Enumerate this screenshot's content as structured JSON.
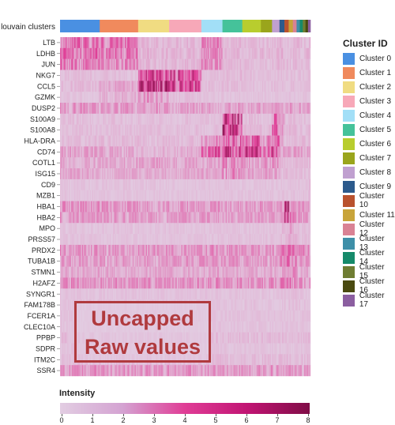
{
  "top_bar_label": "louvain clusters",
  "legend_title": "Cluster ID",
  "colorbar_title": "Intensity",
  "colorbar_ticks": [
    "0",
    "1",
    "2",
    "3",
    "4",
    "5",
    "6",
    "7",
    "8"
  ],
  "stamp_line1": "Uncapped",
  "stamp_line2": "Raw values",
  "colors": {
    "low": "#e2cde2",
    "mid": "#e03d96",
    "high": "#7f0c46",
    "stamp": "#b03a3e"
  },
  "clusters": [
    {
      "label": "Cluster 0",
      "color": "#4a90e2",
      "share": 0.16
    },
    {
      "label": "Cluster 1",
      "color": "#f08a5d",
      "share": 0.155
    },
    {
      "label": "Cluster 2",
      "color": "#f0dc82",
      "share": 0.125
    },
    {
      "label": "Cluster 3",
      "color": "#f7a8b8",
      "share": 0.13
    },
    {
      "label": "Cluster 4",
      "color": "#a2dff7",
      "share": 0.085
    },
    {
      "label": "Cluster 5",
      "color": "#45c29a",
      "share": 0.08
    },
    {
      "label": "Cluster 6",
      "color": "#b8cd2e",
      "share": 0.075
    },
    {
      "label": "Cluster 7",
      "color": "#9aa51c",
      "share": 0.045
    },
    {
      "label": "Cluster 8",
      "color": "#c0a0d0",
      "share": 0.03
    },
    {
      "label": "Cluster 9",
      "color": "#2c5a8c",
      "share": 0.02
    },
    {
      "label": "Cluster 10",
      "color": "#b9522e",
      "share": 0.017
    },
    {
      "label": "Cluster 11",
      "color": "#c8a43a",
      "share": 0.017
    },
    {
      "label": "Cluster 12",
      "color": "#d98294",
      "share": 0.015
    },
    {
      "label": "Cluster 13",
      "color": "#3e8fa8",
      "share": 0.013
    },
    {
      "label": "Cluster 14",
      "color": "#168a6a",
      "share": 0.012
    },
    {
      "label": "Cluster 15",
      "color": "#6f7d33",
      "share": 0.011
    },
    {
      "label": "Cluster 16",
      "color": "#4a4a10",
      "share": 0.01
    },
    {
      "label": "Cluster 17",
      "color": "#8b5ea0",
      "share": 0.01
    }
  ],
  "chart_data": {
    "type": "heatmap",
    "title": "",
    "xlabel": "louvain clusters",
    "ylabel": "",
    "colorbar_label": "Intensity",
    "colorbar_range": [
      0,
      8
    ],
    "genes": [
      "LTB",
      "LDHB",
      "JUN",
      "NKG7",
      "CCL5",
      "GZMK",
      "DUSP2",
      "S100A9",
      "S100A8",
      "HLA-DRA",
      "CD74",
      "COTL1",
      "ISG15",
      "CD9",
      "MZB1",
      "HBA1",
      "HBA2",
      "MPO",
      "PRSS57",
      "PRDX2",
      "TUBA1B",
      "STMN1",
      "H2AFZ",
      "SYNGR1",
      "FAM178B",
      "FCER1A",
      "CLEC10A",
      "PPBP",
      "SDPR",
      "ITM2C",
      "SSR4"
    ],
    "cluster_ids": [
      0,
      1,
      2,
      3,
      4,
      5,
      6,
      7,
      8,
      9,
      10,
      11,
      12,
      13,
      14,
      15,
      16,
      17
    ],
    "mean_intensity": [
      [
        2.5,
        2.2,
        0.6,
        0.6,
        1.8,
        0.6,
        0.5,
        0.5,
        0.6,
        0.7,
        0.6,
        0.5,
        0.6,
        0.6,
        0.5,
        0.6,
        0.5,
        0.6
      ],
      [
        2.4,
        2.2,
        0.7,
        0.6,
        1.6,
        0.6,
        0.5,
        0.6,
        0.6,
        0.7,
        0.6,
        0.5,
        0.6,
        0.6,
        0.5,
        0.6,
        0.6,
        0.6
      ],
      [
        2.0,
        1.9,
        0.6,
        0.6,
        1.7,
        0.6,
        0.5,
        0.5,
        0.6,
        0.6,
        0.5,
        0.5,
        0.6,
        0.6,
        0.5,
        0.5,
        0.5,
        0.5
      ],
      [
        0.4,
        0.4,
        3.5,
        3.3,
        0.4,
        0.5,
        0.4,
        0.4,
        0.4,
        0.4,
        0.4,
        0.4,
        0.4,
        0.4,
        0.4,
        0.4,
        0.4,
        0.4
      ],
      [
        0.5,
        1.0,
        4.0,
        3.6,
        0.4,
        0.5,
        0.4,
        0.4,
        0.4,
        0.4,
        0.4,
        0.4,
        0.4,
        0.4,
        0.4,
        0.4,
        0.4,
        0.4
      ],
      [
        0.3,
        0.8,
        1.5,
        0.4,
        0.3,
        0.3,
        0.3,
        0.3,
        0.3,
        0.3,
        0.3,
        0.3,
        0.3,
        0.3,
        0.3,
        0.3,
        0.3,
        0.3
      ],
      [
        1.4,
        1.3,
        1.3,
        1.2,
        1.2,
        1.2,
        1.2,
        1.1,
        1.2,
        1.2,
        1.1,
        1.2,
        1.1,
        1.2,
        1.2,
        1.1,
        1.1,
        1.2
      ],
      [
        0.4,
        0.4,
        0.4,
        0.4,
        0.4,
        3.8,
        0.5,
        0.5,
        2.4,
        1.1,
        0.5,
        0.5,
        0.6,
        0.5,
        0.4,
        0.4,
        0.4,
        0.5
      ],
      [
        0.4,
        0.4,
        0.4,
        0.4,
        0.4,
        4.0,
        0.5,
        0.5,
        2.6,
        1.2,
        0.5,
        0.5,
        0.6,
        0.5,
        0.4,
        0.4,
        0.4,
        0.5
      ],
      [
        0.5,
        0.5,
        0.5,
        0.5,
        1.8,
        2.8,
        2.8,
        1.7,
        2.6,
        0.8,
        0.6,
        0.5,
        0.7,
        0.6,
        0.5,
        0.6,
        0.5,
        0.6
      ],
      [
        1.2,
        1.0,
        0.8,
        0.8,
        2.8,
        3.6,
        4.2,
        2.8,
        3.4,
        1.4,
        1.2,
        1.0,
        1.2,
        1.2,
        1.1,
        1.0,
        1.0,
        1.2
      ],
      [
        1.0,
        1.0,
        1.2,
        1.1,
        1.0,
        2.0,
        1.3,
        1.4,
        1.6,
        0.6,
        0.5,
        0.6,
        0.6,
        0.6,
        0.5,
        0.5,
        0.5,
        0.6
      ],
      [
        1.0,
        0.9,
        0.9,
        0.9,
        1.0,
        1.8,
        1.1,
        1.2,
        1.2,
        0.5,
        0.5,
        0.5,
        0.5,
        0.5,
        0.5,
        0.5,
        0.5,
        0.5
      ],
      [
        0.3,
        0.3,
        0.3,
        0.3,
        0.3,
        0.3,
        0.3,
        0.3,
        0.3,
        0.3,
        0.3,
        0.3,
        0.3,
        0.3,
        0.3,
        0.3,
        0.3,
        0.8
      ],
      [
        0.3,
        0.3,
        0.3,
        0.3,
        0.3,
        0.3,
        0.3,
        0.3,
        0.3,
        0.3,
        0.3,
        0.3,
        0.3,
        0.3,
        0.3,
        0.3,
        0.3,
        0.5
      ],
      [
        1.6,
        1.4,
        1.3,
        1.3,
        1.4,
        1.3,
        1.3,
        1.2,
        1.2,
        1.6,
        6.0,
        2.5,
        2.2,
        1.6,
        1.4,
        1.5,
        1.4,
        1.4
      ],
      [
        1.4,
        1.3,
        1.2,
        1.2,
        1.3,
        1.2,
        1.2,
        1.1,
        1.1,
        1.5,
        5.6,
        2.2,
        2.0,
        1.4,
        1.3,
        1.4,
        1.2,
        1.3
      ],
      [
        0.3,
        0.3,
        0.3,
        0.3,
        0.3,
        0.3,
        0.3,
        0.3,
        0.3,
        0.5,
        0.5,
        1.0,
        0.8,
        0.4,
        0.4,
        0.4,
        0.4,
        0.4
      ],
      [
        0.3,
        0.3,
        0.3,
        0.3,
        0.3,
        0.3,
        0.3,
        0.3,
        0.3,
        0.4,
        0.6,
        1.0,
        0.9,
        0.4,
        0.4,
        0.4,
        0.4,
        0.4
      ],
      [
        1.5,
        1.4,
        1.4,
        1.4,
        1.5,
        1.5,
        1.4,
        1.4,
        1.4,
        1.8,
        2.8,
        2.2,
        2.2,
        1.8,
        1.6,
        1.6,
        1.6,
        1.6
      ],
      [
        1.4,
        1.3,
        1.3,
        1.3,
        1.4,
        1.3,
        1.3,
        1.3,
        1.3,
        1.6,
        2.2,
        2.0,
        2.0,
        1.6,
        1.5,
        1.5,
        1.4,
        1.5
      ],
      [
        1.0,
        0.9,
        0.9,
        0.9,
        1.0,
        0.9,
        0.9,
        0.9,
        0.9,
        1.2,
        1.6,
        1.6,
        1.6,
        1.2,
        1.1,
        1.1,
        1.1,
        1.2
      ],
      [
        1.6,
        1.5,
        1.5,
        1.5,
        1.6,
        1.5,
        1.5,
        1.5,
        1.5,
        1.8,
        2.2,
        2.2,
        2.2,
        1.8,
        1.7,
        1.7,
        1.7,
        1.7
      ],
      [
        0.3,
        0.3,
        0.3,
        0.3,
        0.3,
        0.3,
        0.3,
        0.3,
        0.3,
        0.3,
        0.4,
        0.4,
        0.4,
        0.4,
        0.3,
        0.3,
        0.3,
        0.3
      ],
      [
        0.3,
        0.3,
        0.3,
        0.3,
        0.3,
        0.3,
        0.3,
        0.3,
        0.3,
        0.3,
        0.4,
        0.4,
        0.4,
        0.4,
        0.3,
        0.3,
        0.3,
        0.3
      ],
      [
        0.3,
        0.3,
        0.3,
        0.3,
        0.3,
        0.3,
        0.3,
        0.3,
        0.3,
        0.3,
        0.3,
        0.3,
        0.3,
        0.3,
        0.3,
        0.3,
        0.3,
        0.3
      ],
      [
        0.3,
        0.3,
        0.3,
        0.3,
        0.3,
        0.3,
        0.3,
        0.3,
        0.3,
        0.3,
        0.3,
        0.3,
        0.3,
        0.3,
        0.3,
        0.3,
        0.3,
        0.3
      ],
      [
        0.5,
        0.5,
        0.5,
        0.5,
        0.5,
        0.5,
        0.5,
        0.5,
        0.5,
        0.5,
        0.5,
        0.5,
        0.6,
        0.5,
        0.5,
        0.5,
        0.5,
        0.5
      ],
      [
        0.3,
        0.3,
        0.3,
        0.3,
        0.3,
        0.3,
        0.3,
        0.3,
        0.3,
        0.3,
        0.3,
        0.3,
        0.3,
        0.3,
        0.3,
        0.3,
        0.3,
        0.3
      ],
      [
        0.5,
        0.5,
        0.5,
        0.5,
        0.5,
        0.5,
        0.5,
        0.5,
        0.5,
        0.5,
        0.6,
        0.6,
        0.6,
        0.5,
        0.5,
        0.5,
        0.5,
        0.5
      ],
      [
        1.5,
        1.4,
        1.4,
        1.4,
        1.4,
        1.4,
        1.4,
        1.4,
        1.4,
        1.5,
        1.6,
        1.6,
        1.6,
        1.5,
        1.5,
        1.5,
        1.5,
        1.5
      ]
    ]
  }
}
